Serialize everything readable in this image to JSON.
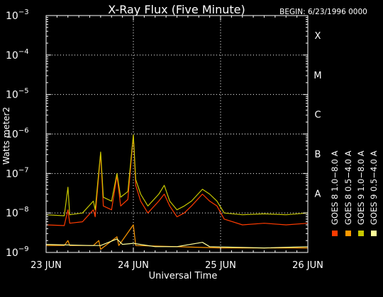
{
  "chart_data": {
    "type": "line",
    "title": "X-Ray Flux (Five Minute)",
    "begin_label": "BEGIN: 6/23/1996 0000",
    "ylabel": "Watts meter2",
    "xlabel": "Universal Time",
    "y_scale": "log",
    "ylim": [
      1e-09,
      0.001
    ],
    "y_ticks": [
      {
        "value": 1e-09,
        "base": "10",
        "exp": "−9"
      },
      {
        "value": 1e-08,
        "base": "10",
        "exp": "−8"
      },
      {
        "value": 1e-07,
        "base": "10",
        "exp": "−7"
      },
      {
        "value": 1e-06,
        "base": "10",
        "exp": "−6"
      },
      {
        "value": 1e-05,
        "base": "10",
        "exp": "−5"
      },
      {
        "value": 0.0001,
        "base": "10",
        "exp": "−4"
      },
      {
        "value": 0.001,
        "base": "10",
        "exp": "−3"
      }
    ],
    "x_range": [
      "1996-06-23 00:00",
      "1996-06-26 00:00"
    ],
    "x_ticks": [
      {
        "value": "1996-06-23 00:00",
        "label": "23 JUN"
      },
      {
        "value": "1996-06-24 00:00",
        "label": "24 JUN"
      },
      {
        "value": "1996-06-25 00:00",
        "label": "25 JUN"
      },
      {
        "value": "1996-06-26 00:00",
        "label": "26 JUN"
      }
    ],
    "flare_classes": [
      {
        "label": "X",
        "value": 0.0001
      },
      {
        "label": "M",
        "value": 1e-05
      },
      {
        "label": "C",
        "value": 1e-06
      },
      {
        "label": "B",
        "value": 1e-07
      },
      {
        "label": "A",
        "value": 1e-08
      }
    ],
    "legend": [
      {
        "label": "GOES 8 1.0−8.0 A",
        "color": "#ff3b00"
      },
      {
        "label": "GOES 8 0.5−4.0 A",
        "color": "#ff9900"
      },
      {
        "label": "GOES 9 1.0−8.0 A",
        "color": "#c8c800"
      },
      {
        "label": "GOES 9 0.5−4.0 A",
        "color": "#ffff99"
      }
    ],
    "grid": "dotted horizontal lines at each decade",
    "series": [
      {
        "name": "GOES 8 1.0−8.0 A",
        "color": "#ff3b00",
        "points": [
          [
            "1996-06-23 00:00",
            5e-09
          ],
          [
            "1996-06-23 05:00",
            4.8e-09
          ],
          [
            "1996-06-23 06:00",
            1.2e-08
          ],
          [
            "1996-06-23 06:30",
            5.5e-09
          ],
          [
            "1996-06-23 10:00",
            6e-09
          ],
          [
            "1996-06-23 13:00",
            1.2e-08
          ],
          [
            "1996-06-23 13:30",
            8e-09
          ],
          [
            "1996-06-23 15:00",
            3.2e-07
          ],
          [
            "1996-06-23 15:45",
            1.5e-08
          ],
          [
            "1996-06-23 18:00",
            1.2e-08
          ],
          [
            "1996-06-23 19:30",
            8.8e-08
          ],
          [
            "1996-06-23 20:30",
            1.5e-08
          ],
          [
            "1996-06-23 22:30",
            2.2e-08
          ],
          [
            "1996-06-24 00:00",
            9e-07
          ],
          [
            "1996-06-24 00:40",
            5e-08
          ],
          [
            "1996-06-24 02:00",
            2e-08
          ],
          [
            "1996-06-24 04:00",
            1e-08
          ],
          [
            "1996-06-24 07:00",
            2e-08
          ],
          [
            "1996-06-24 08:30",
            3e-08
          ],
          [
            "1996-06-24 10:00",
            1.5e-08
          ],
          [
            "1996-06-24 12:00",
            8e-09
          ],
          [
            "1996-06-24 14:00",
            1e-08
          ],
          [
            "1996-06-24 16:00",
            1.5e-08
          ],
          [
            "1996-06-24 19:00",
            3e-08
          ],
          [
            "1996-06-24 21:00",
            2e-08
          ],
          [
            "1996-06-24 23:00",
            1.5e-08
          ],
          [
            "1996-06-25 01:00",
            7e-09
          ],
          [
            "1996-06-25 06:00",
            5e-09
          ],
          [
            "1996-06-25 12:00",
            5.5e-09
          ],
          [
            "1996-06-25 18:00",
            5e-09
          ],
          [
            "1996-06-26 00:00",
            5.5e-09
          ]
        ]
      },
      {
        "name": "GOES 8 0.5−4.0 A",
        "color": "#ff9900",
        "points": [
          [
            "1996-06-23 00:00",
            1.5e-09
          ],
          [
            "1996-06-23 05:00",
            1.5e-09
          ],
          [
            "1996-06-23 06:00",
            2e-09
          ],
          [
            "1996-06-23 06:30",
            1.5e-09
          ],
          [
            "1996-06-23 13:00",
            1.5e-09
          ],
          [
            "1996-06-23 14:30",
            2e-09
          ],
          [
            "1996-06-23 15:00",
            1.2e-09
          ],
          [
            "1996-06-23 19:30",
            2.5e-09
          ],
          [
            "1996-06-23 20:00",
            1.5e-09
          ],
          [
            "1996-06-24 00:00",
            5e-09
          ],
          [
            "1996-06-24 00:40",
            1.5e-09
          ],
          [
            "1996-06-25 00:00",
            1.3e-09
          ],
          [
            "1996-06-26 00:00",
            1.3e-09
          ]
        ]
      },
      {
        "name": "GOES 9 1.0−8.0 A",
        "color": "#c8c800",
        "points": [
          [
            "1996-06-23 00:00",
            9e-09
          ],
          [
            "1996-06-23 05:00",
            8.5e-09
          ],
          [
            "1996-06-23 06:00",
            4.5e-08
          ],
          [
            "1996-06-23 06:30",
            9e-09
          ],
          [
            "1996-06-23 10:00",
            1e-08
          ],
          [
            "1996-06-23 13:00",
            2e-08
          ],
          [
            "1996-06-23 13:30",
            1.2e-08
          ],
          [
            "1996-06-23 15:00",
            3.5e-07
          ],
          [
            "1996-06-23 15:45",
            2.5e-08
          ],
          [
            "1996-06-23 18:00",
            2e-08
          ],
          [
            "1996-06-23 19:30",
            1e-07
          ],
          [
            "1996-06-23 20:30",
            2.5e-08
          ],
          [
            "1996-06-23 22:30",
            3.5e-08
          ],
          [
            "1996-06-24 00:00",
            9.5e-07
          ],
          [
            "1996-06-24 00:40",
            7e-08
          ],
          [
            "1996-06-24 02:00",
            3e-08
          ],
          [
            "1996-06-24 04:00",
            1.5e-08
          ],
          [
            "1996-06-24 07:00",
            3e-08
          ],
          [
            "1996-06-24 08:30",
            5e-08
          ],
          [
            "1996-06-24 10:00",
            2e-08
          ],
          [
            "1996-06-24 12:00",
            1.2e-08
          ],
          [
            "1996-06-24 14:00",
            1.5e-08
          ],
          [
            "1996-06-24 16:00",
            2e-08
          ],
          [
            "1996-06-24 19:00",
            4e-08
          ],
          [
            "1996-06-24 21:00",
            3e-08
          ],
          [
            "1996-06-24 23:00",
            2e-08
          ],
          [
            "1996-06-25 01:00",
            1e-08
          ],
          [
            "1996-06-25 06:00",
            9e-09
          ],
          [
            "1996-06-25 12:00",
            9.5e-09
          ],
          [
            "1996-06-25 18:00",
            9e-09
          ],
          [
            "1996-06-26 00:00",
            1e-08
          ]
        ]
      },
      {
        "name": "GOES 9 0.5−4.0 A",
        "color": "#ffff99",
        "points": [
          [
            "1996-06-23 00:00",
            1.6e-09
          ],
          [
            "1996-06-23 12:00",
            1.5e-09
          ],
          [
            "1996-06-23 15:00",
            1.5e-09
          ],
          [
            "1996-06-23 19:30",
            2.2e-09
          ],
          [
            "1996-06-23 21:00",
            1.6e-09
          ],
          [
            "1996-06-24 00:00",
            1.7e-09
          ],
          [
            "1996-06-24 06:00",
            1.4e-09
          ],
          [
            "1996-06-24 12:00",
            1.4e-09
          ],
          [
            "1996-06-24 19:00",
            1.8e-09
          ],
          [
            "1996-06-24 21:00",
            1.4e-09
          ],
          [
            "1996-06-25 12:00",
            1.3e-09
          ],
          [
            "1996-06-26 00:00",
            1.4e-09
          ]
        ]
      }
    ]
  }
}
